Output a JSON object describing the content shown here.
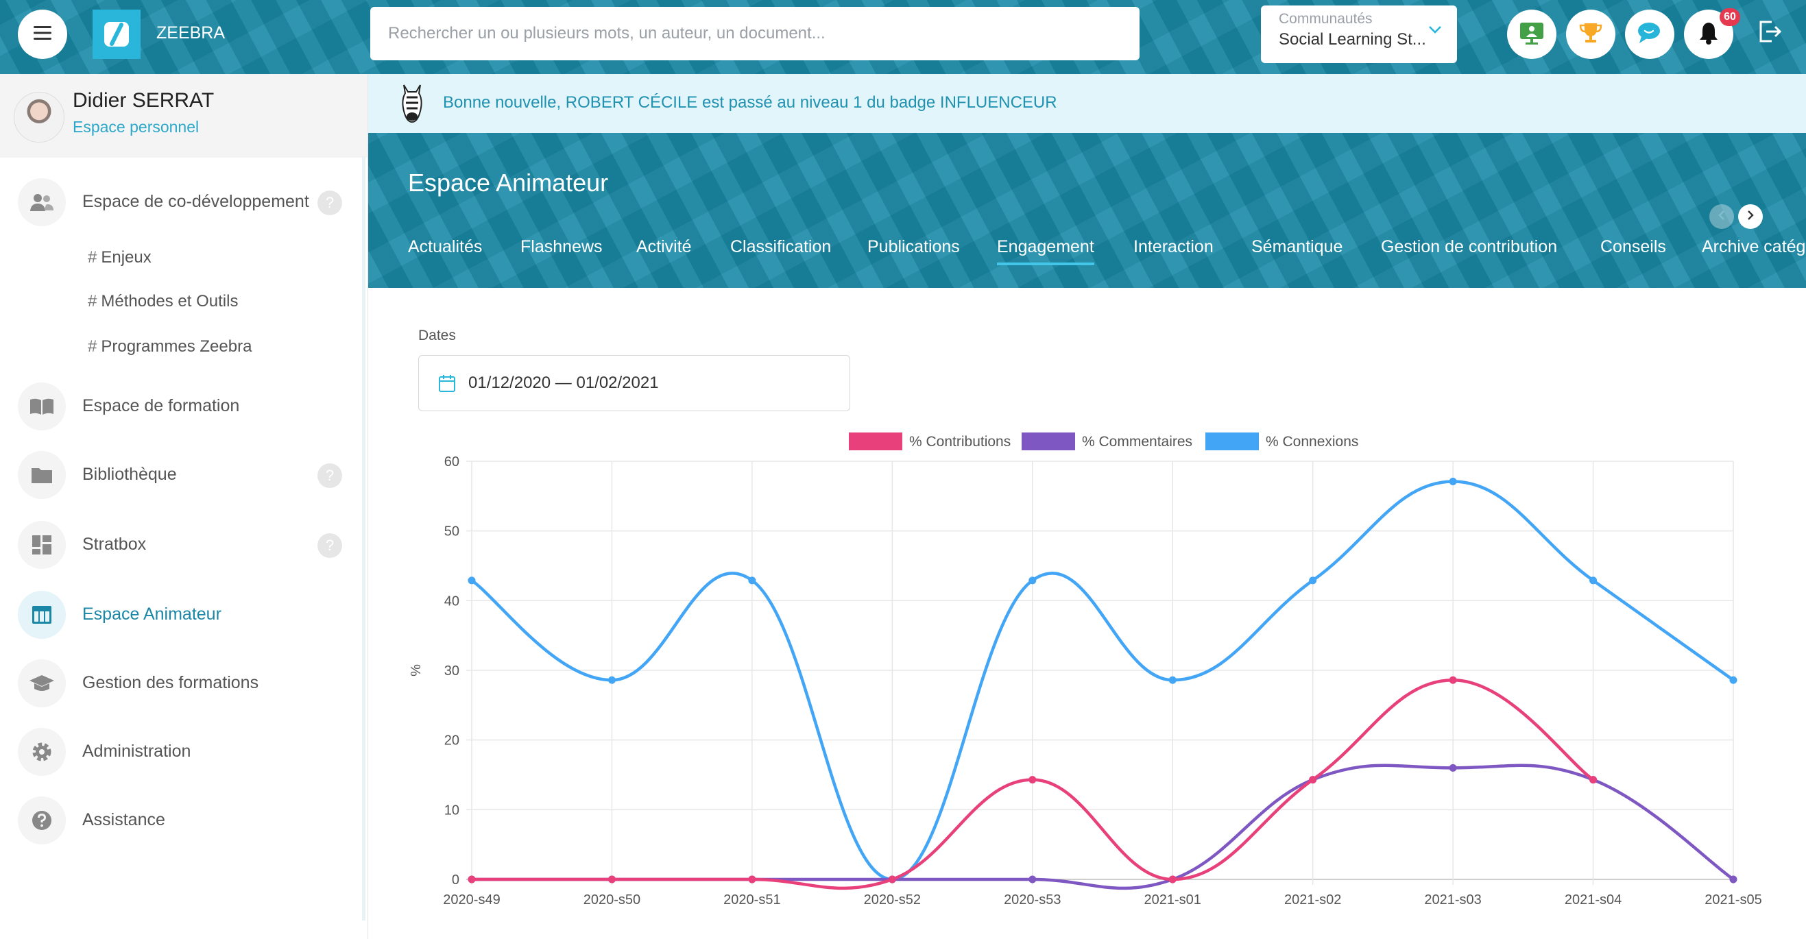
{
  "app": {
    "brand": "ZEEBRA"
  },
  "search": {
    "placeholder": "Rechercher un ou plusieurs mots, un auteur, un document..."
  },
  "community": {
    "label": "Communautés",
    "value": "Social Learning St..."
  },
  "toolbar": {
    "icons": [
      "presentation-icon",
      "trophy-icon",
      "chat-icon",
      "bell-icon",
      "logout-icon"
    ],
    "notification_count": "60"
  },
  "profile": {
    "name": "Didier SERRAT",
    "link": "Espace personnel"
  },
  "sidebar": {
    "items": [
      {
        "label": "Espace de co-développement",
        "icon": "people-icon",
        "help": "?"
      },
      {
        "label": "Espace de formation",
        "icon": "book-icon"
      },
      {
        "label": "Bibliothèque",
        "icon": "folder-icon",
        "help": "?"
      },
      {
        "label": "Stratbox",
        "icon": "dashboard-icon",
        "help": "?"
      },
      {
        "label": "Espace Animateur",
        "icon": "table-icon",
        "active": true
      },
      {
        "label": "Gestion des formations",
        "icon": "graduation-cap-icon"
      },
      {
        "label": "Administration",
        "icon": "gear-icon"
      },
      {
        "label": "Assistance",
        "icon": "question-circle-icon"
      }
    ],
    "subitems": [
      {
        "hash": "#",
        "label": "Enjeux"
      },
      {
        "hash": "#",
        "label": "Méthodes et Outils"
      },
      {
        "hash": "#",
        "label": "Programmes Zeebra"
      }
    ]
  },
  "notification": {
    "text": "Bonne nouvelle, ROBERT CÉCILE est passé au niveau 1 du badge INFLUENCEUR"
  },
  "header": {
    "title": "Espace Animateur",
    "tabs": [
      {
        "label": "Actualités"
      },
      {
        "label": "Flashnews"
      },
      {
        "label": "Activité"
      },
      {
        "label": "Classification"
      },
      {
        "label": "Publications"
      },
      {
        "label": "Engagement",
        "active": true
      },
      {
        "label": "Interaction"
      },
      {
        "label": "Sémantique"
      },
      {
        "label": "Gestion de contribution"
      },
      {
        "label": "Conseils"
      },
      {
        "label": "Archive catég"
      }
    ]
  },
  "filters": {
    "dates_label": "Dates",
    "date_range": "01/12/2020  —  01/02/2021"
  },
  "colors": {
    "accent": "#1a8aa8",
    "contributions": "#e8407a",
    "commentaires": "#7e57c2",
    "connexions": "#42a5f5"
  },
  "chart_data": {
    "type": "line",
    "ylabel": "%",
    "ylim": [
      0,
      60
    ],
    "yticks": [
      0,
      10,
      20,
      30,
      40,
      50,
      60
    ],
    "legend_position": "top",
    "grid": true,
    "categories": [
      "2020-s49",
      "2020-s50",
      "2020-s51",
      "2020-s52",
      "2020-s53",
      "2021-s01",
      "2021-s02",
      "2021-s03",
      "2021-s04",
      "2021-s05"
    ],
    "series": [
      {
        "name": "% Contributions",
        "color": "#e8407a",
        "values": [
          0,
          0,
          0,
          0,
          14.3,
          0,
          14.3,
          28.6,
          14.3,
          null
        ]
      },
      {
        "name": "% Commentaires",
        "color": "#7e57c2",
        "values": [
          0,
          0,
          0,
          0,
          0,
          0,
          14.3,
          16,
          14.3,
          0
        ]
      },
      {
        "name": "% Connexions",
        "color": "#42a5f5",
        "values": [
          42.9,
          28.6,
          42.9,
          0,
          42.9,
          28.6,
          42.9,
          57.1,
          42.9,
          28.6
        ]
      }
    ]
  }
}
